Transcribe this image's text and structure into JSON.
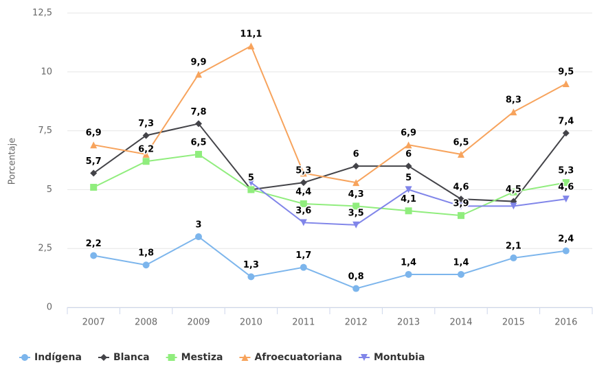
{
  "chart_data": {
    "type": "line",
    "y_label": "Porcentaje",
    "categories": [
      "2007",
      "2008",
      "2009",
      "2010",
      "2011",
      "2012",
      "2013",
      "2014",
      "2015",
      "2016"
    ],
    "ylim": [
      0,
      12.5
    ],
    "yticks": [
      0,
      {
        "value": 2.5,
        "label": "2,5"
      },
      5,
      {
        "value": 7.5,
        "label": "7,5"
      },
      10,
      {
        "value": 12.5,
        "label": "12,5"
      }
    ],
    "grid": true,
    "legend": "bottom",
    "series": [
      {
        "name": "Indígena",
        "color": "#7cb5ec",
        "symbol": "circle",
        "values": [
          2.2,
          1.8,
          3,
          1.3,
          1.7,
          0.8,
          1.4,
          1.4,
          2.1,
          2.4
        ],
        "value_labels": [
          "2,2",
          "1,8",
          "3",
          "1,3",
          "1,7",
          "0,8",
          "1,4",
          "1,4",
          "2,1",
          "2,4"
        ]
      },
      {
        "name": "Blanca",
        "color": "#434348",
        "symbol": "diamond",
        "values": [
          5.7,
          7.3,
          7.8,
          5,
          5.3,
          6,
          6,
          4.6,
          4.5,
          7.4
        ],
        "value_labels": [
          "5,7",
          "7,3",
          "7,8",
          "5",
          "5,3",
          "6",
          "6",
          "4,6",
          "4,5",
          "7,4"
        ]
      },
      {
        "name": "Mestiza",
        "color": "#90ed7d",
        "symbol": "square",
        "values": [
          5.1,
          6.2,
          6.5,
          5,
          4.4,
          4.3,
          4.1,
          3.9,
          4.9,
          5.3
        ],
        "value_labels": [
          null,
          "6,2",
          "6,5",
          null,
          "4,4",
          "4,3",
          "4,1",
          "3,9",
          null,
          "5,3"
        ]
      },
      {
        "name": "Afroecuatoriana",
        "color": "#f7a35c",
        "symbol": "triangle",
        "values": [
          6.9,
          6.5,
          9.9,
          11.1,
          5.7,
          5.3,
          6.9,
          6.5,
          8.3,
          9.5
        ],
        "value_labels": [
          "6,9",
          null,
          "9,9",
          "11,1",
          null,
          null,
          "6,9",
          "6,5",
          "8,3",
          "9,5"
        ]
      },
      {
        "name": "Montubia",
        "color": "#8085e9",
        "symbol": "triangle-down",
        "values": [
          null,
          null,
          null,
          5.3,
          3.6,
          3.5,
          5,
          4.3,
          4.3,
          4.6
        ],
        "value_labels": [
          null,
          null,
          null,
          null,
          "3,6",
          "3,5",
          "5",
          null,
          null,
          "4,6"
        ]
      }
    ]
  }
}
